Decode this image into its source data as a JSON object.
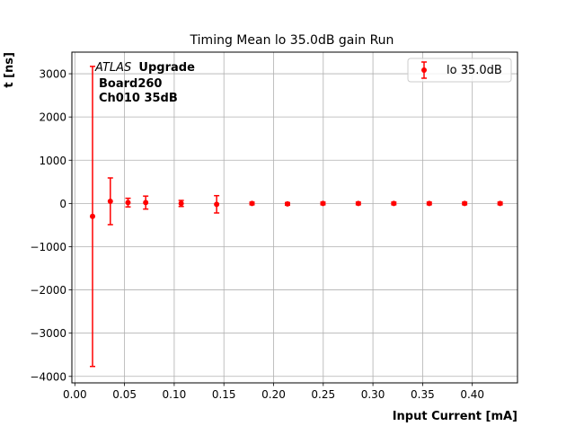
{
  "chart_data": {
    "type": "scatter",
    "title": "Timing Mean lo 35.0dB gain Run",
    "xlabel": "Input Current [mA]",
    "ylabel": "t [ns]",
    "xlim": [
      -0.003,
      0.4455
    ],
    "ylim": [
      -4150,
      3500
    ],
    "xticks": [
      0.0,
      0.05,
      0.1,
      0.15,
      0.2,
      0.25,
      0.3,
      0.35,
      0.4
    ],
    "xtick_labels": [
      "0.00",
      "0.05",
      "0.10",
      "0.15",
      "0.20",
      "0.25",
      "0.30",
      "0.35",
      "0.40"
    ],
    "yticks": [
      -4000,
      -3000,
      -2000,
      -1000,
      0,
      1000,
      2000,
      3000
    ],
    "ytick_labels": [
      "−4000",
      "−3000",
      "−2000",
      "−1000",
      "0",
      "1000",
      "2000",
      "3000"
    ],
    "grid": true,
    "legend_position": "top-right",
    "annotation": {
      "experiment": "ATLAS",
      "tag": "Upgrade",
      "line2": "Board260",
      "line3": "Ch010 35dB"
    },
    "series": [
      {
        "name": "lo 35.0dB",
        "color": "#ff0000",
        "marker": "circle",
        "x": [
          0.0178,
          0.0357,
          0.0535,
          0.0713,
          0.107,
          0.1427,
          0.1783,
          0.214,
          0.2497,
          0.2853,
          0.321,
          0.3567,
          0.3923,
          0.428
        ],
        "y": [
          -300,
          50,
          20,
          20,
          0,
          -20,
          0,
          -10,
          0,
          0,
          0,
          0,
          0,
          0
        ],
        "yerr": [
          3470,
          540,
          100,
          150,
          70,
          200,
          30,
          30,
          30,
          30,
          30,
          30,
          30,
          30
        ]
      }
    ]
  }
}
